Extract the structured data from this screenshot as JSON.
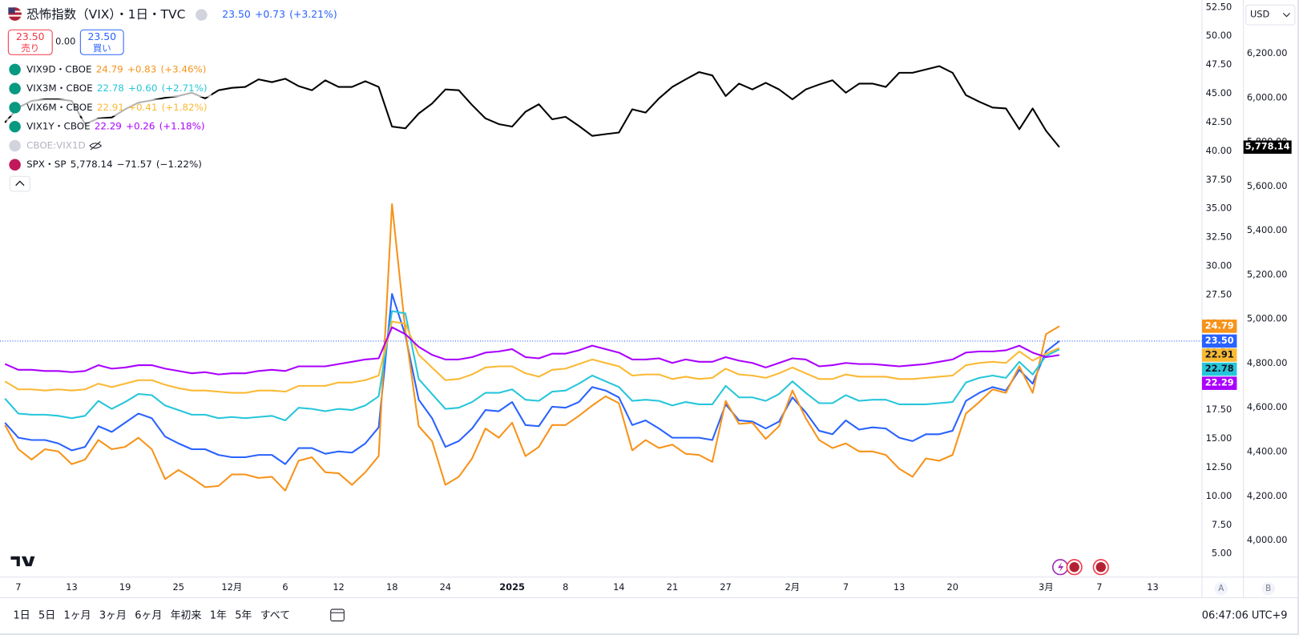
{
  "header": {
    "currency": "USD"
  },
  "trade": {
    "sell_price": "23.50",
    "sell_label": "売り",
    "spread": "0.00",
    "buy_price": "23.50",
    "buy_label": "買い"
  },
  "hidden_legend": [
    {
      "name": "CBOE:VIX1D"
    }
  ],
  "toolbar": {
    "ranges": [
      "1日",
      "5日",
      "1ヶ月",
      "3ヶ月",
      "6ヶ月",
      "年初来",
      "1年",
      "5年",
      "すべて"
    ],
    "time": "06:47:06 UTC+9",
    "axis_buttons": [
      "A",
      "B"
    ]
  },
  "chart_data": {
    "type": "line",
    "categories": [
      null,
      "7",
      null,
      null,
      null,
      "13",
      null,
      null,
      null,
      "19",
      null,
      null,
      null,
      "25",
      null,
      null,
      null,
      "12月",
      null,
      null,
      null,
      "6",
      null,
      null,
      null,
      "12",
      null,
      null,
      null,
      "18",
      null,
      null,
      null,
      "24",
      null,
      null,
      null,
      null,
      "2025",
      null,
      null,
      null,
      "8",
      null,
      null,
      null,
      "14",
      null,
      null,
      null,
      "21",
      null,
      null,
      null,
      "27",
      null,
      null,
      null,
      null,
      "2月",
      null,
      null,
      null,
      "7",
      null,
      null,
      null,
      "13",
      null,
      null,
      null,
      "20",
      null,
      null,
      null,
      null,
      null,
      null,
      "3月",
      null,
      null,
      null,
      "7",
      null,
      null,
      null,
      "13",
      null,
      null,
      null
    ],
    "ylim": [
      2.985,
      53.15
    ],
    "yticks": [
      {
        "value": 5,
        "label": "5.00"
      },
      {
        "value": 7.5,
        "label": "7.50"
      },
      {
        "value": 10,
        "label": "10.00"
      },
      {
        "value": 12.5,
        "label": "12.50"
      },
      {
        "value": 15,
        "label": "15.00"
      },
      {
        "value": 17.5,
        "label": "17.50"
      },
      {
        "value": 20,
        "label": "20.00"
      },
      {
        "value": 22.5,
        "label": "22.50"
      },
      {
        "value": 25,
        "label": "25.00"
      },
      {
        "value": 27.5,
        "label": "27.50"
      },
      {
        "value": 30,
        "label": "30.00"
      },
      {
        "value": 32.5,
        "label": "32.50"
      },
      {
        "value": 35,
        "label": "35.00"
      },
      {
        "value": 37.5,
        "label": "37.50"
      },
      {
        "value": 40,
        "label": "40.00"
      },
      {
        "value": 42.5,
        "label": "42.50"
      },
      {
        "value": 45,
        "label": "45.00"
      },
      {
        "value": 47.5,
        "label": "47.50"
      },
      {
        "value": 50,
        "label": "50.00"
      },
      {
        "value": 52.5,
        "label": "52.50"
      }
    ],
    "y2lim": [
      3835,
      6443
    ],
    "y2ticks": [
      {
        "value": 4000,
        "label": "4,000.00"
      },
      {
        "value": 4200,
        "label": "4,200.00"
      },
      {
        "value": 4400,
        "label": "4,400.00"
      },
      {
        "value": 4600,
        "label": "4,600.00"
      },
      {
        "value": 4800,
        "label": "4,800.00"
      },
      {
        "value": 5000,
        "label": "5,000.00"
      },
      {
        "value": 5200,
        "label": "5,200.00"
      },
      {
        "value": 5400,
        "label": "5,400.00"
      },
      {
        "value": 5600,
        "label": "5,600.00"
      },
      {
        "value": 5800,
        "label": "5,800.00"
      },
      {
        "value": 6000,
        "label": "6,000.00"
      },
      {
        "value": 6200,
        "label": "6,200.00"
      }
    ],
    "series": [
      {
        "name": "恐怖指数（VIX）・1日・TVC",
        "color": "#2962ff",
        "last_label": "23.50",
        "change": "+0.73",
        "change_pct": "(+3.21%)",
        "values": [
          16.4,
          15.1,
          14.9,
          14.9,
          14.6,
          14.0,
          14.3,
          16.1,
          15.6,
          16.4,
          17.2,
          16.8,
          15.2,
          14.6,
          14.1,
          14.1,
          13.6,
          13.4,
          13.4,
          13.6,
          13.6,
          12.8,
          14.2,
          14.2,
          13.7,
          13.9,
          13.8,
          14.6,
          16.0,
          27.6,
          24.0,
          18.4,
          16.8,
          14.3,
          14.8,
          15.9,
          17.5,
          17.4,
          18.2,
          16.2,
          16.1,
          17.8,
          17.7,
          18.2,
          19.5,
          19.2,
          18.6,
          16.2,
          16.6,
          15.9,
          15.1,
          15.1,
          15.1,
          14.9,
          18.0,
          16.6,
          16.5,
          15.9,
          16.5,
          18.6,
          17.3,
          15.7,
          15.4,
          16.6,
          15.8,
          16.0,
          15.9,
          15.1,
          14.8,
          15.4,
          15.4,
          15.7,
          18.3,
          19.0,
          19.5,
          19.2,
          21.0,
          19.8,
          22.6,
          23.5,
          null,
          null,
          null,
          null,
          null,
          null,
          null,
          null,
          null,
          null
        ]
      },
      {
        "name": "VIX9D・CBOE",
        "color": "#f7931a",
        "last_label": "24.79",
        "change": "+0.83",
        "change_pct": "(+3.46%)",
        "values": [
          16.2,
          14.1,
          13.2,
          14.1,
          13.9,
          12.8,
          13.2,
          14.9,
          14.1,
          14.3,
          15.1,
          14.1,
          11.5,
          12.3,
          11.6,
          10.8,
          10.9,
          11.9,
          11.9,
          11.6,
          11.7,
          10.5,
          13.1,
          13.4,
          12.1,
          12.0,
          11.0,
          12.1,
          13.5,
          35.4,
          24.4,
          16.1,
          14.8,
          11.0,
          11.7,
          13.3,
          15.9,
          15.1,
          16.4,
          13.5,
          14.3,
          16.2,
          16.2,
          17.0,
          17.9,
          18.7,
          18.1,
          14.0,
          14.9,
          14.2,
          14.5,
          13.7,
          13.6,
          13.0,
          18.3,
          16.3,
          16.4,
          15.0,
          16.1,
          19.2,
          16.8,
          14.9,
          14.2,
          14.6,
          13.9,
          13.9,
          13.6,
          12.4,
          11.7,
          13.3,
          13.1,
          13.6,
          17.2,
          18.2,
          19.3,
          19.0,
          21.3,
          19.0,
          24.1,
          24.79,
          null,
          null,
          null,
          null,
          null,
          null,
          null,
          null,
          null,
          null
        ]
      },
      {
        "name": "VIX3M・CBOE",
        "color": "#26c6da",
        "last_label": "22.78",
        "change": "+0.60",
        "change_pct": "(+2.71%)",
        "values": [
          18.5,
          17.2,
          17.1,
          17.1,
          17.0,
          16.8,
          17.0,
          18.3,
          17.6,
          18.2,
          18.9,
          18.8,
          17.9,
          17.5,
          17.1,
          17.1,
          16.8,
          16.9,
          16.8,
          16.9,
          17.0,
          16.6,
          17.7,
          17.6,
          17.4,
          17.6,
          17.5,
          17.9,
          18.7,
          26.1,
          25.9,
          20.2,
          18.9,
          17.6,
          17.7,
          18.2,
          19.0,
          19.0,
          19.3,
          18.4,
          18.3,
          19.1,
          19.2,
          19.8,
          20.5,
          20.0,
          19.5,
          18.3,
          18.4,
          18.3,
          17.9,
          18.2,
          18.0,
          18.0,
          19.6,
          18.6,
          18.6,
          18.3,
          18.9,
          20.0,
          19.0,
          18.1,
          18.1,
          18.8,
          18.3,
          18.4,
          18.4,
          18.0,
          18.0,
          18.0,
          18.1,
          18.2,
          19.9,
          20.3,
          20.5,
          20.3,
          21.7,
          20.6,
          22.2,
          22.78,
          null,
          null,
          null,
          null,
          null,
          null,
          null,
          null,
          null,
          null
        ]
      },
      {
        "name": "VIX6M・CBOE",
        "color": "#fbb934",
        "last_label": "22.91",
        "change": "+0.41",
        "change_pct": "(+1.82%)",
        "values": [
          20.0,
          19.3,
          19.3,
          19.2,
          19.3,
          19.2,
          19.3,
          19.8,
          19.5,
          19.8,
          20.1,
          20.1,
          19.7,
          19.4,
          19.2,
          19.2,
          19.1,
          19.0,
          19.0,
          19.2,
          19.2,
          19.1,
          19.6,
          19.6,
          19.6,
          19.9,
          19.9,
          20.1,
          20.5,
          25.2,
          25.0,
          22.3,
          21.2,
          20.1,
          20.2,
          20.6,
          21.2,
          21.3,
          21.3,
          20.7,
          20.4,
          21.0,
          21.1,
          21.5,
          21.9,
          21.6,
          21.3,
          20.5,
          20.6,
          20.6,
          20.2,
          20.4,
          20.2,
          20.3,
          21.1,
          20.6,
          20.5,
          20.3,
          20.7,
          21.2,
          20.7,
          20.2,
          20.2,
          20.6,
          20.4,
          20.4,
          20.4,
          20.2,
          20.2,
          20.3,
          20.4,
          20.5,
          21.4,
          21.6,
          21.7,
          21.6,
          22.6,
          21.8,
          22.4,
          22.91,
          null,
          null,
          null,
          null,
          null,
          null,
          null,
          null,
          null,
          null
        ]
      },
      {
        "name": "VIX1Y・CBOE",
        "color": "#aa00ff",
        "last_label": "22.29",
        "change": "+0.26",
        "change_pct": "(+1.18%)",
        "values": [
          21.5,
          21.0,
          21.0,
          20.9,
          20.9,
          20.8,
          20.9,
          21.4,
          21.1,
          21.2,
          21.4,
          21.4,
          21.1,
          20.9,
          20.7,
          20.8,
          20.6,
          20.7,
          20.7,
          20.9,
          21.0,
          20.9,
          21.3,
          21.3,
          21.3,
          21.5,
          21.7,
          21.9,
          22.0,
          24.7,
          24.1,
          23.0,
          22.3,
          21.9,
          21.9,
          22.1,
          22.5,
          22.6,
          22.8,
          22.1,
          22.0,
          22.4,
          22.4,
          22.7,
          23.1,
          22.8,
          22.5,
          21.9,
          21.9,
          22.0,
          21.6,
          21.9,
          21.7,
          21.7,
          22.1,
          21.8,
          21.6,
          21.2,
          21.6,
          22.0,
          21.9,
          21.3,
          21.4,
          21.6,
          21.5,
          21.5,
          21.4,
          21.3,
          21.4,
          21.5,
          21.7,
          21.9,
          22.5,
          22.6,
          22.6,
          22.7,
          23.1,
          22.5,
          22.1,
          22.29,
          null,
          null,
          null,
          null,
          null,
          null,
          null,
          null,
          null,
          null
        ]
      },
      {
        "name": "SPX・SP",
        "color": "#000000",
        "axis": "y2",
        "last_label": "5,778.14",
        "change": "−71.57",
        "change_pct": "(−1.22%)",
        "values": [
          5889,
          5957,
          5987,
          5994,
          5994,
          5987,
          5882,
          5908,
          5912,
          5949,
          5979,
          5990,
          6001,
          6009,
          6024,
          5998,
          6035,
          6046,
          6050,
          6084,
          6072,
          6087,
          6054,
          6035,
          6080,
          6050,
          6050,
          6076,
          6050,
          5871,
          5863,
          5930,
          5975,
          6039,
          6035,
          5968,
          5908,
          5882,
          5871,
          5938,
          5972,
          5904,
          5915,
          5874,
          5829,
          5837,
          5844,
          5949,
          5934,
          5998,
          6050,
          6084,
          6117,
          6102,
          6009,
          6065,
          6039,
          6069,
          6039,
          5994,
          6039,
          6061,
          6080,
          6024,
          6065,
          6065,
          6050,
          6114,
          6114,
          6129,
          6144,
          6114,
          6013,
          5983,
          5957,
          5953,
          5859,
          5953,
          5852,
          5778.14,
          null,
          null,
          null,
          null,
          null,
          null,
          null,
          null,
          null,
          null
        ]
      }
    ]
  }
}
